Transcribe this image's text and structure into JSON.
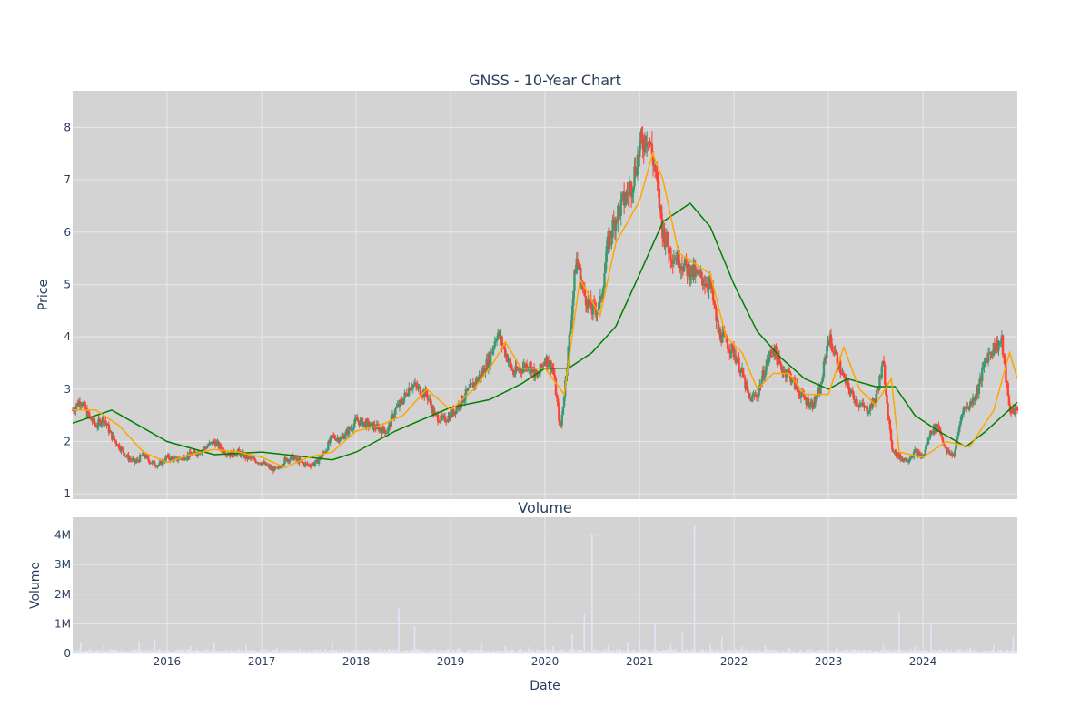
{
  "chart_data": [
    {
      "type": "candlestick",
      "title": "GNSS - 10-Year Chart",
      "xlabel": "",
      "ylabel": "Price",
      "ylim": [
        0.9,
        8.7
      ],
      "xlim": [
        "2015-01-01",
        "2024-12-31"
      ],
      "yticks": [
        1,
        2,
        3,
        4,
        5,
        6,
        7,
        8
      ],
      "grid": true,
      "legend": "none",
      "colors": {
        "background": "#d3d3d3",
        "grid": "#e8e8e8",
        "up": "#3d9970",
        "down": "#ff4136",
        "ma_short": "#ffa500",
        "ma_long": "#008000"
      },
      "close": {
        "x": [
          "2015-01-01",
          "2015-02-01",
          "2015-03-01",
          "2015-04-01",
          "2015-05-01",
          "2015-06-01",
          "2015-07-01",
          "2015-08-01",
          "2015-09-01",
          "2015-10-01",
          "2015-11-01",
          "2015-12-01",
          "2016-01-01",
          "2016-02-01",
          "2016-03-01",
          "2016-04-01",
          "2016-05-01",
          "2016-06-01",
          "2016-07-01",
          "2016-08-01",
          "2016-09-01",
          "2016-10-01",
          "2016-11-01",
          "2016-12-01",
          "2017-01-01",
          "2017-02-01",
          "2017-03-01",
          "2017-04-01",
          "2017-05-01",
          "2017-06-01",
          "2017-07-01",
          "2017-08-01",
          "2017-09-01",
          "2017-10-01",
          "2017-11-01",
          "2017-12-01",
          "2018-01-01",
          "2018-02-01",
          "2018-03-01",
          "2018-04-01",
          "2018-05-01",
          "2018-06-01",
          "2018-07-01",
          "2018-08-01",
          "2018-09-01",
          "2018-10-01",
          "2018-11-01",
          "2018-12-01",
          "2019-01-01",
          "2019-02-01",
          "2019-03-01",
          "2019-04-01",
          "2019-05-01",
          "2019-06-01",
          "2019-07-01",
          "2019-08-01",
          "2019-09-01",
          "2019-10-01",
          "2019-11-01",
          "2019-12-01",
          "2020-01-01",
          "2020-02-01",
          "2020-03-01",
          "2020-04-01",
          "2020-05-01",
          "2020-06-01",
          "2020-07-01",
          "2020-08-01",
          "2020-09-01",
          "2020-10-01",
          "2020-11-01",
          "2020-12-01",
          "2021-01-01",
          "2021-02-01",
          "2021-03-01",
          "2021-04-01",
          "2021-05-01",
          "2021-06-01",
          "2021-07-01",
          "2021-08-01",
          "2021-09-01",
          "2021-10-01",
          "2021-11-01",
          "2021-12-01",
          "2022-01-01",
          "2022-02-01",
          "2022-03-01",
          "2022-04-01",
          "2022-05-01",
          "2022-06-01",
          "2022-07-01",
          "2022-08-01",
          "2022-09-01",
          "2022-10-01",
          "2022-11-01",
          "2022-12-01",
          "2023-01-01",
          "2023-02-01",
          "2023-03-01",
          "2023-04-01",
          "2023-05-01",
          "2023-06-01",
          "2023-07-01",
          "2023-08-01",
          "2023-09-01",
          "2023-10-01",
          "2023-11-01",
          "2023-12-01",
          "2024-01-01",
          "2024-02-01",
          "2024-03-01",
          "2024-04-01",
          "2024-05-01",
          "2024-06-01",
          "2024-07-01",
          "2024-08-01",
          "2024-09-01",
          "2024-10-01",
          "2024-11-01",
          "2024-12-01"
        ],
        "y": [
          2.6,
          2.8,
          2.5,
          2.3,
          2.45,
          2.1,
          1.9,
          1.7,
          1.6,
          1.75,
          1.6,
          1.55,
          1.7,
          1.65,
          1.7,
          1.75,
          1.8,
          1.9,
          2.0,
          1.85,
          1.75,
          1.8,
          1.7,
          1.65,
          1.6,
          1.5,
          1.45,
          1.65,
          1.7,
          1.6,
          1.55,
          1.6,
          1.8,
          2.1,
          2.05,
          2.2,
          2.4,
          2.35,
          2.3,
          2.25,
          2.2,
          2.6,
          2.8,
          3.1,
          3.0,
          2.9,
          2.5,
          2.4,
          2.5,
          2.7,
          2.9,
          3.1,
          3.3,
          3.6,
          4.1,
          3.7,
          3.3,
          3.4,
          3.5,
          3.2,
          3.6,
          3.4,
          2.2,
          3.8,
          5.5,
          4.8,
          4.5,
          4.6,
          5.8,
          6.3,
          6.6,
          6.9,
          7.6,
          7.9,
          7.2,
          6.0,
          5.6,
          5.5,
          5.3,
          5.2,
          5.1,
          5.0,
          4.1,
          3.9,
          3.7,
          3.3,
          2.8,
          2.9,
          3.4,
          3.8,
          3.4,
          3.3,
          3.0,
          2.8,
          2.7,
          3.0,
          4.0,
          3.6,
          3.2,
          2.9,
          2.7,
          2.6,
          2.8,
          3.5,
          1.9,
          1.7,
          1.65,
          1.8,
          1.7,
          2.2,
          2.3,
          1.8,
          1.75,
          2.6,
          2.7,
          3.0,
          3.6,
          3.8,
          3.9,
          2.6
        ]
      },
      "ma_short": {
        "x": [
          "2015-01-01",
          "2015-04-01",
          "2015-07-01",
          "2015-10-01",
          "2016-01-01",
          "2016-04-01",
          "2016-07-01",
          "2016-10-01",
          "2017-01-01",
          "2017-04-01",
          "2017-07-01",
          "2017-10-01",
          "2018-01-01",
          "2018-04-01",
          "2018-07-01",
          "2018-10-01",
          "2019-01-01",
          "2019-04-01",
          "2019-06-15",
          "2019-08-01",
          "2019-10-01",
          "2020-01-01",
          "2020-03-15",
          "2020-05-15",
          "2020-08-01",
          "2020-10-01",
          "2021-01-01",
          "2021-02-20",
          "2021-04-01",
          "2021-06-01",
          "2021-08-01",
          "2021-10-01",
          "2021-12-01",
          "2022-02-01",
          "2022-04-01",
          "2022-06-01",
          "2022-08-01",
          "2022-10-01",
          "2023-01-01",
          "2023-03-01",
          "2023-05-01",
          "2023-07-01",
          "2023-09-01",
          "2023-10-01",
          "2024-01-01",
          "2024-04-01",
          "2024-07-01",
          "2024-10-01",
          "2024-12-01",
          "2024-12-31"
        ],
        "y": [
          2.6,
          2.6,
          2.3,
          1.8,
          1.6,
          1.75,
          1.85,
          1.8,
          1.7,
          1.5,
          1.7,
          1.8,
          2.2,
          2.3,
          2.5,
          3.0,
          2.6,
          3.0,
          3.5,
          3.9,
          3.4,
          3.4,
          2.9,
          5.1,
          4.4,
          5.8,
          6.6,
          7.5,
          7.0,
          5.6,
          5.4,
          5.2,
          4.0,
          3.7,
          3.0,
          3.3,
          3.3,
          2.9,
          2.9,
          3.8,
          3.0,
          2.7,
          3.2,
          1.8,
          1.7,
          2.0,
          1.9,
          2.6,
          3.7,
          3.2
        ]
      },
      "ma_long": {
        "x": [
          "2015-01-01",
          "2015-06-01",
          "2016-01-01",
          "2016-07-01",
          "2017-01-01",
          "2017-07-01",
          "2017-10-01",
          "2018-01-01",
          "2018-06-01",
          "2019-01-01",
          "2019-06-01",
          "2019-10-01",
          "2020-01-01",
          "2020-04-01",
          "2020-07-01",
          "2020-10-01",
          "2021-01-01",
          "2021-04-01",
          "2021-07-15",
          "2021-10-01",
          "2022-01-01",
          "2022-04-01",
          "2022-07-01",
          "2022-10-01",
          "2023-01-01",
          "2023-03-15",
          "2023-07-01",
          "2023-09-15",
          "2023-12-01",
          "2024-03-01",
          "2024-06-15",
          "2024-09-01",
          "2024-12-31"
        ],
        "y": [
          2.35,
          2.6,
          2.0,
          1.75,
          1.8,
          1.7,
          1.65,
          1.8,
          2.2,
          2.65,
          2.8,
          3.1,
          3.4,
          3.4,
          3.7,
          4.2,
          5.2,
          6.2,
          6.55,
          6.1,
          5.0,
          4.1,
          3.6,
          3.2,
          3.0,
          3.2,
          3.05,
          3.05,
          2.5,
          2.2,
          1.9,
          2.2,
          2.75
        ]
      }
    },
    {
      "type": "bar",
      "title": "Volume",
      "xlabel": "Date",
      "ylabel": "Volume",
      "ylim": [
        0,
        4600000
      ],
      "yticks": [
        0,
        1000000,
        2000000,
        3000000,
        4000000
      ],
      "ytick_labels": [
        "0",
        "1M",
        "2M",
        "3M",
        "4M"
      ],
      "xticks": [
        "2016-01-01",
        "2017-01-01",
        "2018-01-01",
        "2019-01-01",
        "2020-01-01",
        "2021-01-01",
        "2022-01-01",
        "2023-01-01",
        "2024-01-01"
      ],
      "xtick_labels": [
        "2016",
        "2017",
        "2018",
        "2019",
        "2020",
        "2021",
        "2022",
        "2023",
        "2024"
      ],
      "grid": true,
      "colors": {
        "background": "#d3d3d3",
        "bar": "#e4e4f7"
      },
      "x": [
        "2015-02-01",
        "2015-05-01",
        "2015-09-15",
        "2015-11-15",
        "2016-04-01",
        "2016-07-01",
        "2016-11-01",
        "2017-03-01",
        "2017-08-01",
        "2017-10-01",
        "2018-04-01",
        "2018-06-15",
        "2018-08-15",
        "2019-02-01",
        "2019-05-01",
        "2019-08-01",
        "2019-11-01",
        "2020-02-01",
        "2020-04-15",
        "2020-06-01",
        "2020-07-01",
        "2020-09-01",
        "2020-11-15",
        "2021-01-01",
        "2021-03-01",
        "2021-05-01",
        "2021-06-15",
        "2021-08-01",
        "2021-10-01",
        "2021-11-15",
        "2022-02-01",
        "2022-05-01",
        "2022-08-01",
        "2022-11-01",
        "2023-02-01",
        "2023-05-01",
        "2023-08-01",
        "2023-10-01",
        "2023-12-01",
        "2024-02-01",
        "2024-04-01",
        "2024-07-01",
        "2024-10-01",
        "2024-12-15"
      ],
      "values": [
        380000,
        260000,
        420000,
        460000,
        230000,
        380000,
        300000,
        200000,
        150000,
        400000,
        160000,
        1520000,
        900000,
        200000,
        330000,
        260000,
        220000,
        250000,
        640000,
        1320000,
        4050000,
        300000,
        380000,
        460000,
        1000000,
        300000,
        750000,
        4350000,
        300000,
        560000,
        220000,
        240000,
        180000,
        130000,
        180000,
        140000,
        280000,
        1350000,
        230000,
        960000,
        220000,
        210000,
        280000,
        600000
      ]
    }
  ]
}
